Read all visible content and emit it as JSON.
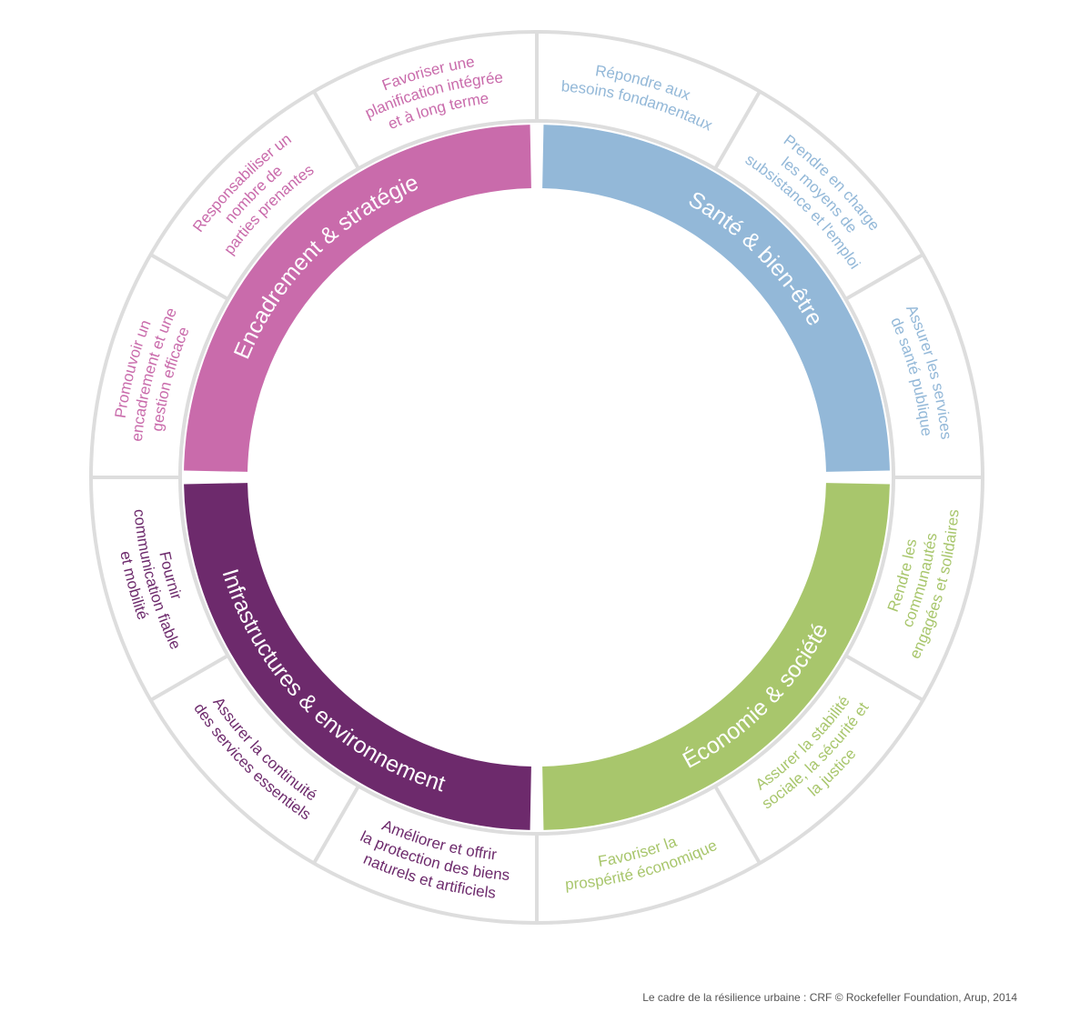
{
  "quadrants": [
    {
      "title": "Santé & bien-être",
      "color": "#93b8d8",
      "text_color": "#93b8d8",
      "goals": [
        {
          "lines": [
            "Répondre aux",
            "besoins fondamentaux"
          ]
        },
        {
          "lines": [
            "Prendre en charge",
            "les moyens de",
            "subsistance et l'emploi"
          ]
        },
        {
          "lines": [
            "Assurer les services",
            "de santé publique"
          ]
        }
      ]
    },
    {
      "title": "Économie & société",
      "color": "#a8c66c",
      "text_color": "#a8c66c",
      "goals": [
        {
          "lines": [
            "Rendre les",
            "communautés",
            "engagées et solidaires"
          ]
        },
        {
          "lines": [
            "Assurer la stabilité",
            "sociale, la sécurité et",
            "la justice"
          ]
        },
        {
          "lines": [
            "Favoriser la",
            "prospérité économique"
          ]
        }
      ]
    },
    {
      "title": "Infrastructures & environnement",
      "color": "#6d2a6c",
      "text_color": "#6d2a6c",
      "goals": [
        {
          "lines": [
            "Améliorer et offrir",
            "la protection des biens",
            "naturels et artificiels"
          ]
        },
        {
          "lines": [
            "Assurer la continuité",
            "des services essentiels"
          ]
        },
        {
          "lines": [
            "Fournir",
            "communication fiable",
            "et mobilité"
          ]
        }
      ]
    },
    {
      "title": "Encadrement & stratégie",
      "color": "#c96bab",
      "text_color": "#c96bab",
      "goals": [
        {
          "lines": [
            "Promouvoir un",
            "encadrement et une",
            "gestion efficace"
          ]
        },
        {
          "lines": [
            "Responsabiliser un",
            "nombre de",
            "parties prenantes"
          ]
        },
        {
          "lines": [
            "Favoriser une",
            "planification intégrée",
            "et à long terme"
          ]
        }
      ]
    }
  ],
  "outline_color": "#dddddd",
  "caption": "Le cadre de la résilience urbaine : CRF © Rockefeller Foundation, Arup, 2014"
}
